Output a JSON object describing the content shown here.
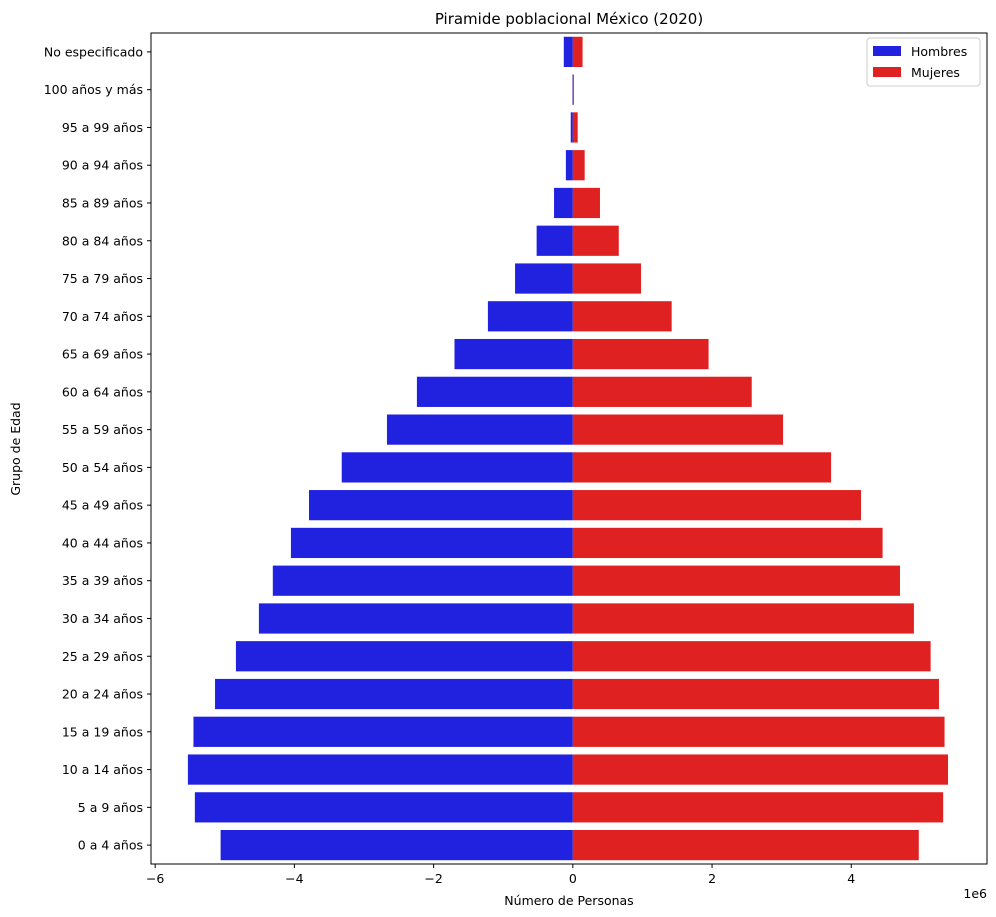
{
  "chart_data": {
    "type": "bar",
    "orientation": "horizontal",
    "title": "Piramide poblacional México (2020)",
    "xlabel": "Número de Personas",
    "ylabel": "Grupo de Edad",
    "x_offset_label": "1e6",
    "xlim": [
      -6.06,
      5.95
    ],
    "xticks": [
      -6,
      -4,
      -2,
      0,
      2,
      4
    ],
    "xtick_labels": [
      "−6",
      "−4",
      "−2",
      "0",
      "2",
      "4"
    ],
    "grid": false,
    "legend_position": "top-right",
    "categories": [
      "No especificado",
      "100 años y más",
      "95 a 99 años",
      "90 a 94 años",
      "85 a 89 años",
      "80 a 84 años",
      "75 a 79 años",
      "70 a 74 años",
      "65 a 69 años",
      "60 a 64 años",
      "55 a 59 años",
      "50 a 54 años",
      "45 a 49 años",
      "40 a 44 años",
      "35 a 39 años",
      "30 a 34 años",
      "25 a 29 años",
      "20 a 24 años",
      "15 a 19 años",
      "10 a 14 años",
      "5 a 9 años",
      "0 a 4 años"
    ],
    "series": [
      {
        "name": "Hombres",
        "color": "#2121e0",
        "values": [
          -0.13,
          -0.005,
          -0.03,
          -0.1,
          -0.27,
          -0.52,
          -0.83,
          -1.22,
          -1.7,
          -2.24,
          -2.67,
          -3.32,
          -3.79,
          -4.05,
          -4.31,
          -4.51,
          -4.84,
          -5.14,
          -5.45,
          -5.53,
          -5.43,
          -5.06
        ]
      },
      {
        "name": "Mujeres",
        "color": "#e02121",
        "values": [
          0.14,
          0.015,
          0.07,
          0.17,
          0.39,
          0.66,
          0.98,
          1.42,
          1.95,
          2.57,
          3.02,
          3.71,
          4.14,
          4.45,
          4.7,
          4.9,
          5.14,
          5.26,
          5.34,
          5.39,
          5.32,
          4.97
        ]
      }
    ]
  }
}
